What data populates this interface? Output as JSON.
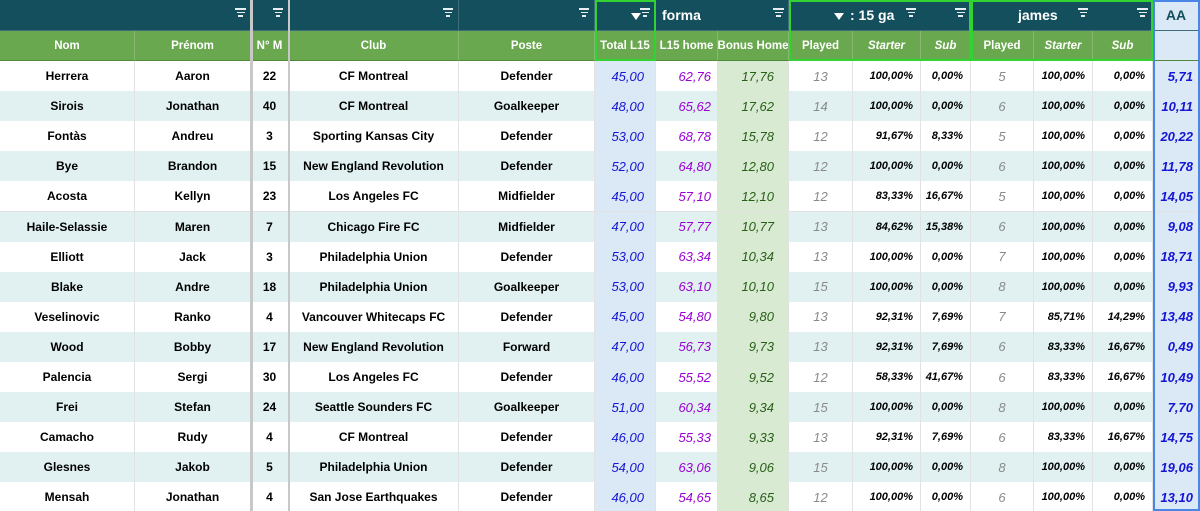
{
  "sheet": {
    "group_headers": [
      {
        "label": ""
      },
      {
        "label": ""
      },
      {
        "label": ""
      },
      {
        "label": ""
      },
      {
        "label": ""
      },
      {
        "label": "forma"
      },
      {
        "label": ": 15 ga"
      },
      {
        "label": "james"
      },
      {
        "label": "AA"
      }
    ],
    "columns": [
      "Nom",
      "Prénom",
      "N° M",
      "Club",
      "Poste",
      "Total L15",
      "L15 home",
      "Bonus Home",
      "Played",
      "Starter",
      "Sub",
      "Played",
      "Starter",
      "Sub",
      ""
    ],
    "rows": [
      [
        "Herrera",
        "Aaron",
        "22",
        "CF Montreal",
        "Defender",
        "45,00",
        "62,76",
        "17,76",
        "13",
        "100,00%",
        "0,00%",
        "5",
        "100,00%",
        "0,00%",
        "5,71"
      ],
      [
        "Sirois",
        "Jonathan",
        "40",
        "CF Montreal",
        "Goalkeeper",
        "48,00",
        "65,62",
        "17,62",
        "14",
        "100,00%",
        "0,00%",
        "6",
        "100,00%",
        "0,00%",
        "10,11"
      ],
      [
        "Fontàs",
        "Andreu",
        "3",
        "Sporting Kansas City",
        "Defender",
        "53,00",
        "68,78",
        "15,78",
        "12",
        "91,67%",
        "8,33%",
        "5",
        "100,00%",
        "0,00%",
        "20,22"
      ],
      [
        "Bye",
        "Brandon",
        "15",
        "New England Revolution",
        "Defender",
        "52,00",
        "64,80",
        "12,80",
        "12",
        "100,00%",
        "0,00%",
        "6",
        "100,00%",
        "0,00%",
        "11,78"
      ],
      [
        "Acosta",
        "Kellyn",
        "23",
        "Los Angeles FC",
        "Midfielder",
        "45,00",
        "57,10",
        "12,10",
        "12",
        "83,33%",
        "16,67%",
        "5",
        "100,00%",
        "0,00%",
        "14,05"
      ],
      [
        "Haile-Selassie",
        "Maren",
        "7",
        "Chicago Fire FC",
        "Midfielder",
        "47,00",
        "57,77",
        "10,77",
        "13",
        "84,62%",
        "15,38%",
        "6",
        "100,00%",
        "0,00%",
        "9,08"
      ],
      [
        "Elliott",
        "Jack",
        "3",
        "Philadelphia Union",
        "Defender",
        "53,00",
        "63,34",
        "10,34",
        "13",
        "100,00%",
        "0,00%",
        "7",
        "100,00%",
        "0,00%",
        "18,71"
      ],
      [
        "Blake",
        "Andre",
        "18",
        "Philadelphia Union",
        "Goalkeeper",
        "53,00",
        "63,10",
        "10,10",
        "15",
        "100,00%",
        "0,00%",
        "8",
        "100,00%",
        "0,00%",
        "9,93"
      ],
      [
        "Veselinovic",
        "Ranko",
        "4",
        "Vancouver Whitecaps FC",
        "Defender",
        "45,00",
        "54,80",
        "9,80",
        "13",
        "92,31%",
        "7,69%",
        "7",
        "85,71%",
        "14,29%",
        "13,48"
      ],
      [
        "Wood",
        "Bobby",
        "17",
        "New England Revolution",
        "Forward",
        "47,00",
        "56,73",
        "9,73",
        "13",
        "92,31%",
        "7,69%",
        "6",
        "83,33%",
        "16,67%",
        "0,49"
      ],
      [
        "Palencia",
        "Sergi",
        "30",
        "Los Angeles FC",
        "Defender",
        "46,00",
        "55,52",
        "9,52",
        "12",
        "58,33%",
        "41,67%",
        "6",
        "83,33%",
        "16,67%",
        "10,49"
      ],
      [
        "Frei",
        "Stefan",
        "24",
        "Seattle Sounders FC",
        "Goalkeeper",
        "51,00",
        "60,34",
        "9,34",
        "15",
        "100,00%",
        "0,00%",
        "8",
        "100,00%",
        "0,00%",
        "7,70"
      ],
      [
        "Camacho",
        "Rudy",
        "4",
        "CF Montreal",
        "Defender",
        "46,00",
        "55,33",
        "9,33",
        "13",
        "92,31%",
        "7,69%",
        "6",
        "83,33%",
        "16,67%",
        "14,75"
      ],
      [
        "Glesnes",
        "Jakob",
        "5",
        "Philadelphia Union",
        "Defender",
        "54,00",
        "63,06",
        "9,06",
        "15",
        "100,00%",
        "0,00%",
        "8",
        "100,00%",
        "0,00%",
        "19,06"
      ],
      [
        "Mensah",
        "Jonathan",
        "4",
        "San Jose Earthquakes",
        "Defender",
        "46,00",
        "54,65",
        "8,65",
        "12",
        "100,00%",
        "0,00%",
        "6",
        "100,00%",
        "0,00%",
        "13,10"
      ]
    ]
  },
  "colors": {
    "header_dark": "#134f5c",
    "header_green": "#6aa84f",
    "row_alt": "#e1f1f1",
    "total_col": "#dbe9f6",
    "bonus_col": "#d9ead3",
    "value_blue": "#1515d6",
    "value_purple": "#9b00d3",
    "value_green": "#265f16",
    "value_gray": "#8a8a8a",
    "highlight_green": "#32d232",
    "highlight_blue": "#4a86e8"
  },
  "icons": {
    "column_menu": "filter-lines-icon",
    "active_filter": "funnel-icon"
  }
}
